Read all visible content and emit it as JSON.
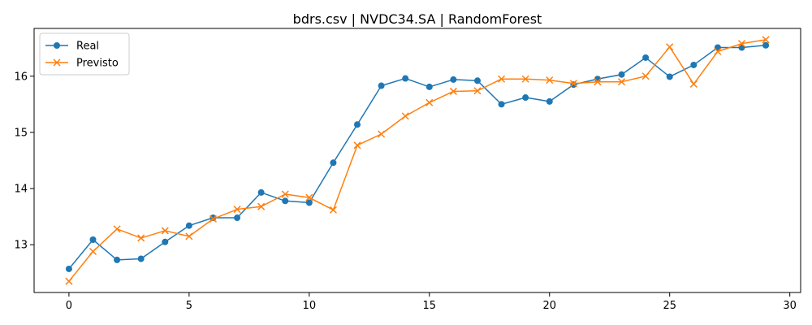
{
  "chart_data": {
    "type": "line",
    "title": "bdrs.csv | NVDC34.SA | RandomForest",
    "xlabel": "",
    "ylabel": "",
    "xlim": [
      -1.45,
      30.45
    ],
    "ylim": [
      12.15,
      16.85
    ],
    "xticks": [
      0,
      5,
      10,
      15,
      20,
      25,
      30
    ],
    "xtick_labels": [
      "0",
      "5",
      "10",
      "15",
      "20",
      "25",
      "30"
    ],
    "yticks": [
      13,
      14,
      15,
      16
    ],
    "ytick_labels": [
      "13",
      "14",
      "15",
      "16"
    ],
    "grid": false,
    "legend_position": "top-left",
    "x": [
      0,
      1,
      2,
      3,
      4,
      5,
      6,
      7,
      8,
      9,
      10,
      11,
      12,
      13,
      14,
      15,
      16,
      17,
      18,
      19,
      20,
      21,
      22,
      23,
      24,
      25,
      26,
      27,
      28,
      29
    ],
    "series": [
      {
        "name": "Real",
        "color": "#1f77b4",
        "marker": "circle",
        "values": [
          12.57,
          13.09,
          12.73,
          12.75,
          13.05,
          13.34,
          13.48,
          13.48,
          13.93,
          13.78,
          13.75,
          14.46,
          15.14,
          15.83,
          15.96,
          15.81,
          15.94,
          15.92,
          15.5,
          15.62,
          15.55,
          15.85,
          15.95,
          16.03,
          16.33,
          15.99,
          16.2,
          16.51,
          16.51,
          16.55
        ]
      },
      {
        "name": "Previsto",
        "color": "#ff7f0e",
        "marker": "x",
        "values": [
          12.35,
          12.88,
          13.28,
          13.12,
          13.25,
          13.15,
          13.46,
          13.63,
          13.68,
          13.9,
          13.84,
          13.62,
          14.77,
          14.97,
          15.29,
          15.53,
          15.73,
          15.74,
          15.95,
          15.95,
          15.93,
          15.87,
          15.9,
          15.9,
          16.0,
          16.52,
          15.86,
          16.44,
          16.58,
          16.65
        ]
      }
    ]
  }
}
